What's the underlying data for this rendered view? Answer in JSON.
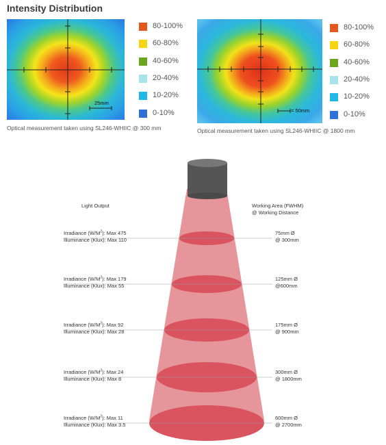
{
  "title": "Intensity Distribution",
  "heatmaps": [
    {
      "scale_label": "25mm",
      "caption": "Optical measurement taken using SL246-WHIIC  @ 300 mm"
    },
    {
      "scale_label": "= 50mm",
      "caption": "Optical measurement taken using SL246-WHIIC  @ 1800 mm"
    }
  ],
  "legend": [
    {
      "label": "80-100%",
      "color": "#e4571f"
    },
    {
      "label": "60-80%",
      "color": "#f5d610"
    },
    {
      "label": "40-60%",
      "color": "#6aa51e"
    },
    {
      "label": "20-40%",
      "color": "#a8e2ea"
    },
    {
      "label": "10-20%",
      "color": "#22b8e6"
    },
    {
      "label": "0-10%",
      "color": "#2f6fd6"
    }
  ],
  "diagram": {
    "left_header": "Light Output",
    "right_header_line1": "Working Area (FWHM)",
    "right_header_line2": "@ Working Distance",
    "irr_prefix": "Irradiance (W/M",
    "irr_suffix": "): Max",
    "ill_text": "Illuminance (Klux): Max",
    "rows": [
      {
        "irradiance": "475",
        "illuminance": "110",
        "area": "75mm Ø",
        "distance": "@ 300mm"
      },
      {
        "irradiance": "179",
        "illuminance": "55",
        "area": "125mm Ø",
        "distance": "@600mm"
      },
      {
        "irradiance": "92",
        "illuminance": "28",
        "area": "175mm Ø",
        "distance": "@ 900mm"
      },
      {
        "irradiance": "24",
        "illuminance": "8",
        "area": "300mm Ø",
        "distance": "@ 1800mm"
      },
      {
        "irradiance": "11",
        "illuminance": "3.5",
        "area": "600mm Ø",
        "distance": "@ 2700mm"
      }
    ]
  },
  "colors": {
    "cone_fill": "#e58f95",
    "ellipse_fill": "#d9545f",
    "light_body": "#555555",
    "light_top": "#777777"
  }
}
